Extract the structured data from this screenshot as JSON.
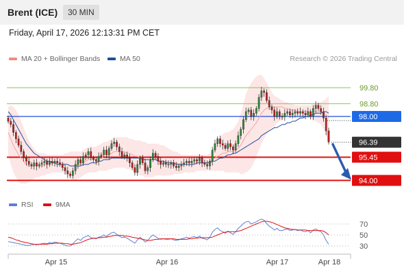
{
  "header": {
    "title": "Brent (ICE)",
    "timeframe": "30 MIN"
  },
  "datetime": "Friday, April 17, 2026 12:13:31 PM CET",
  "legend": [
    {
      "label": "MA 20 + Bollinger Bands",
      "color": "#f28b82"
    },
    {
      "label": "MA 50",
      "color": "#1f4e9a"
    }
  ],
  "research": "Research © 2026 Trading Central",
  "rsi_legend": [
    {
      "label": "RSI",
      "color": "#5b7fd6"
    },
    {
      "label": "9MA",
      "color": "#e01010"
    }
  ],
  "chart_data": {
    "type": "candlestick",
    "levels": [
      {
        "value": 99.8,
        "label": "99.80",
        "style": "resistance",
        "color": "#8bc34a"
      },
      {
        "value": 98.8,
        "label": "98.80",
        "style": "resistance",
        "color": "#8bc34a"
      },
      {
        "value": 98.0,
        "label": "98.00",
        "style": "pivot",
        "color": "#1e4fd8"
      },
      {
        "value": 96.39,
        "label": "96.39",
        "style": "last",
        "color": "#333333"
      },
      {
        "value": 95.45,
        "label": "95.45",
        "style": "support",
        "color": "#e01010"
      },
      {
        "value": 94.0,
        "label": "94.00",
        "style": "support",
        "color": "#e01010"
      }
    ],
    "price_range": [
      93.5,
      101.0
    ],
    "x_labels": [
      "Apr 15",
      "Apr 16",
      "Apr 17",
      "Apr 18"
    ],
    "closes": [
      97.7,
      97.5,
      97.0,
      96.6,
      96.2,
      95.8,
      95.4,
      95.2,
      95.0,
      94.9,
      95.1,
      94.9,
      95.0,
      95.1,
      95.2,
      95.0,
      95.2,
      95.1,
      95.2,
      95.1,
      95.0,
      94.8,
      94.6,
      94.4,
      94.3,
      94.6,
      95.0,
      95.3,
      95.1,
      95.5,
      95.6,
      95.8,
      95.4,
      95.3,
      95.2,
      95.5,
      95.6,
      95.9,
      95.6,
      96.0,
      96.3,
      96.4,
      96.1,
      95.8,
      95.5,
      95.6,
      95.4,
      95.1,
      94.8,
      94.5,
      95.0,
      95.4,
      95.1,
      94.6,
      94.8,
      95.3,
      95.7,
      95.5,
      95.2,
      95.0,
      95.1,
      95.0,
      95.0,
      95.1,
      94.9,
      94.8,
      94.9,
      95.0,
      95.1,
      95.2,
      95.1,
      95.2,
      95.3,
      95.2,
      95.4,
      95.1,
      95.0,
      94.9,
      95.2,
      95.9,
      96.3,
      96.6,
      96.3,
      96.2,
      96.0,
      96.3,
      96.1,
      95.9,
      96.3,
      96.8,
      97.2,
      97.8,
      98.3,
      98.4,
      98.0,
      98.2,
      98.5,
      99.2,
      99.6,
      99.5,
      99.0,
      98.6,
      98.4,
      98.0,
      98.3,
      98.0,
      98.0,
      98.2,
      98.3,
      98.1,
      98.2,
      98.3,
      98.2,
      98.3,
      98.2,
      98.1,
      98.3,
      98.0,
      98.5,
      98.7,
      98.5,
      98.3,
      97.9,
      97.1,
      96.4
    ],
    "ma20": [
      97.0,
      96.6,
      96.2,
      95.9,
      95.6,
      95.4,
      95.2,
      95.0,
      94.9,
      94.9,
      94.9,
      94.9,
      94.9,
      94.9,
      95.0,
      95.0,
      95.0,
      95.1,
      95.1,
      95.1,
      95.1,
      95.1,
      95.0,
      95.0,
      94.9,
      94.9,
      94.9,
      95.0,
      95.0,
      95.1,
      95.2,
      95.3,
      95.3,
      95.3,
      95.3,
      95.4,
      95.4,
      95.5,
      95.5,
      95.6,
      95.7,
      95.8,
      95.8,
      95.8,
      95.8,
      95.8,
      95.7,
      95.7,
      95.6,
      95.5,
      95.5,
      95.4,
      95.4,
      95.3,
      95.3,
      95.3,
      95.3,
      95.3,
      95.3,
      95.2,
      95.2,
      95.2,
      95.1,
      95.1,
      95.1,
      95.1,
      95.0,
      95.0,
      95.0,
      95.0,
      95.0,
      95.0,
      95.1,
      95.1,
      95.1,
      95.1,
      95.1,
      95.1,
      95.2,
      95.3,
      95.4,
      95.5,
      95.6,
      95.7,
      95.7,
      95.8,
      95.8,
      95.8,
      95.9,
      96.0,
      96.2,
      96.5,
      96.8,
      97.0,
      97.2,
      97.4,
      97.6,
      97.9,
      98.2,
      98.4,
      98.5,
      98.6,
      98.6,
      98.6,
      98.6,
      98.6,
      98.6,
      98.5,
      98.5,
      98.4,
      98.4,
      98.4,
      98.3,
      98.3,
      98.3,
      98.3,
      98.3,
      98.3,
      98.3,
      98.3,
      98.3,
      98.3,
      98.2,
      98.1,
      97.9
    ],
    "bb_upper": [
      98.6,
      98.7,
      98.6,
      98.4,
      98.1,
      97.7,
      97.3,
      96.9,
      96.5,
      96.2,
      96.0,
      95.8,
      95.7,
      95.7,
      95.7,
      95.6,
      95.6,
      95.6,
      95.6,
      95.6,
      95.6,
      95.6,
      95.7,
      95.7,
      95.8,
      95.8,
      95.8,
      95.8,
      95.8,
      95.9,
      96.0,
      96.1,
      96.1,
      96.1,
      96.1,
      96.2,
      96.3,
      96.4,
      96.4,
      96.5,
      96.6,
      96.7,
      96.7,
      96.7,
      96.7,
      96.7,
      96.7,
      96.6,
      96.6,
      96.5,
      96.5,
      96.5,
      96.4,
      96.4,
      96.3,
      96.3,
      96.3,
      96.3,
      96.3,
      96.2,
      96.2,
      96.1,
      96.0,
      95.9,
      95.8,
      95.8,
      95.7,
      95.6,
      95.6,
      95.6,
      95.6,
      95.6,
      95.6,
      95.6,
      95.6,
      95.6,
      95.6,
      95.6,
      95.7,
      95.9,
      96.2,
      96.5,
      96.7,
      96.9,
      97.0,
      97.0,
      97.1,
      97.2,
      97.4,
      97.7,
      98.2,
      98.8,
      99.4,
      99.8,
      100.1,
      100.3,
      100.5,
      100.6,
      100.6,
      100.4,
      100.1,
      99.8,
      99.5,
      99.3,
      99.2,
      99.1,
      99.0,
      98.9,
      98.9,
      98.8,
      98.8,
      98.7,
      98.7,
      98.7,
      98.7,
      98.7,
      98.7,
      98.7,
      98.8,
      98.8,
      98.9,
      98.9,
      99.0,
      99.1,
      99.3
    ],
    "bb_lower": [
      95.6,
      95.0,
      94.5,
      94.2,
      93.9,
      93.8,
      93.8,
      93.8,
      93.9,
      94.0,
      94.1,
      94.2,
      94.2,
      94.3,
      94.3,
      94.4,
      94.4,
      94.5,
      94.5,
      94.5,
      94.5,
      94.5,
      94.4,
      94.3,
      94.1,
      94.0,
      94.0,
      94.1,
      94.2,
      94.3,
      94.4,
      94.5,
      94.5,
      94.5,
      94.5,
      94.6,
      94.6,
      94.6,
      94.6,
      94.7,
      94.7,
      94.8,
      94.8,
      94.8,
      94.8,
      94.8,
      94.7,
      94.7,
      94.6,
      94.5,
      94.4,
      94.3,
      94.3,
      94.2,
      94.2,
      94.2,
      94.2,
      94.3,
      94.3,
      94.3,
      94.3,
      94.3,
      94.3,
      94.3,
      94.4,
      94.4,
      94.4,
      94.4,
      94.5,
      94.5,
      94.5,
      94.5,
      94.5,
      94.6,
      94.6,
      94.6,
      94.6,
      94.6,
      94.6,
      94.6,
      94.6,
      94.6,
      94.6,
      94.6,
      94.5,
      94.5,
      94.5,
      94.5,
      94.5,
      94.5,
      94.4,
      94.4,
      94.5,
      94.6,
      94.8,
      95.1,
      95.5,
      95.9,
      96.3,
      96.6,
      96.9,
      97.1,
      97.3,
      97.4,
      97.6,
      97.7,
      97.8,
      97.9,
      98.0,
      98.0,
      98.0,
      98.0,
      97.9,
      97.9,
      97.9,
      97.9,
      97.9,
      97.9,
      97.8,
      97.7,
      97.6,
      97.5,
      97.2,
      96.8,
      96.3
    ],
    "ma50": [
      98.3,
      98.1,
      97.8,
      97.5,
      97.2,
      96.9,
      96.6,
      96.3,
      96.1,
      95.9,
      95.7,
      95.6,
      95.5,
      95.4,
      95.3,
      95.2,
      95.2,
      95.1,
      95.1,
      95.0,
      95.0,
      95.0,
      95.0,
      95.0,
      94.9,
      94.9,
      94.9,
      94.9,
      94.9,
      95.0,
      95.0,
      95.0,
      95.1,
      95.1,
      95.1,
      95.2,
      95.2,
      95.3,
      95.3,
      95.3,
      95.4,
      95.4,
      95.4,
      95.4,
      95.4,
      95.4,
      95.4,
      95.4,
      95.4,
      95.4,
      95.4,
      95.4,
      95.3,
      95.3,
      95.3,
      95.3,
      95.3,
      95.3,
      95.2,
      95.2,
      95.2,
      95.1,
      95.1,
      95.1,
      95.1,
      95.0,
      95.0,
      95.0,
      95.0,
      95.0,
      95.0,
      95.0,
      95.0,
      95.1,
      95.1,
      95.1,
      95.1,
      95.1,
      95.1,
      95.2,
      95.2,
      95.3,
      95.4,
      95.4,
      95.5,
      95.6,
      95.6,
      95.7,
      95.7,
      95.8,
      95.9,
      96.0,
      96.1,
      96.2,
      96.3,
      96.4,
      96.5,
      96.6,
      96.8,
      96.9,
      97.0,
      97.1,
      97.2,
      97.3,
      97.3,
      97.4,
      97.5,
      97.5,
      97.6,
      97.6,
      97.7,
      97.7,
      97.8,
      97.9,
      97.9,
      98.0,
      98.0,
      98.1,
      98.1,
      98.2,
      98.2,
      98.2,
      98.3,
      98.3,
      98.2
    ],
    "rsi": [
      38,
      37,
      36,
      35,
      34,
      33,
      32,
      31,
      31,
      32,
      33,
      32,
      33,
      34,
      35,
      34,
      36,
      35,
      37,
      36,
      35,
      33,
      31,
      30,
      30,
      34,
      39,
      43,
      40,
      45,
      47,
      49,
      45,
      44,
      43,
      46,
      47,
      50,
      47,
      51,
      54,
      55,
      51,
      48,
      45,
      46,
      44,
      41,
      38,
      35,
      41,
      46,
      42,
      37,
      40,
      46,
      50,
      47,
      44,
      42,
      43,
      42,
      42,
      43,
      41,
      40,
      41,
      43,
      44,
      46,
      44,
      46,
      47,
      45,
      48,
      44,
      43,
      41,
      46,
      55,
      60,
      63,
      58,
      56,
      53,
      57,
      54,
      51,
      56,
      62,
      66,
      71,
      74,
      75,
      70,
      72,
      74,
      77,
      79,
      77,
      71,
      66,
      63,
      59,
      62,
      58,
      58,
      60,
      61,
      58,
      59,
      60,
      58,
      59,
      57,
      56,
      58,
      54,
      59,
      61,
      58,
      56,
      50,
      40,
      33
    ],
    "rsi_ma": [
      46,
      45,
      43,
      41,
      40,
      38,
      37,
      36,
      35,
      34,
      33,
      33,
      33,
      33,
      33,
      33,
      34,
      34,
      35,
      35,
      35,
      35,
      34,
      34,
      33,
      33,
      34,
      35,
      36,
      38,
      40,
      42,
      43,
      44,
      44,
      45,
      45,
      46,
      46,
      47,
      48,
      49,
      49,
      49,
      49,
      48,
      48,
      47,
      46,
      45,
      44,
      43,
      42,
      41,
      40,
      40,
      41,
      42,
      42,
      43,
      43,
      43,
      43,
      43,
      43,
      42,
      42,
      42,
      42,
      42,
      43,
      43,
      44,
      44,
      45,
      45,
      45,
      45,
      45,
      46,
      48,
      50,
      52,
      54,
      55,
      56,
      56,
      56,
      56,
      57,
      58,
      60,
      62,
      64,
      66,
      68,
      70,
      72,
      74,
      75,
      75,
      74,
      73,
      71,
      69,
      67,
      65,
      63,
      62,
      61,
      60,
      60,
      59,
      59,
      59,
      59,
      58,
      58,
      58,
      58,
      58,
      58,
      57,
      54,
      50
    ],
    "rsi_levels": [
      70,
      50,
      30
    ]
  }
}
